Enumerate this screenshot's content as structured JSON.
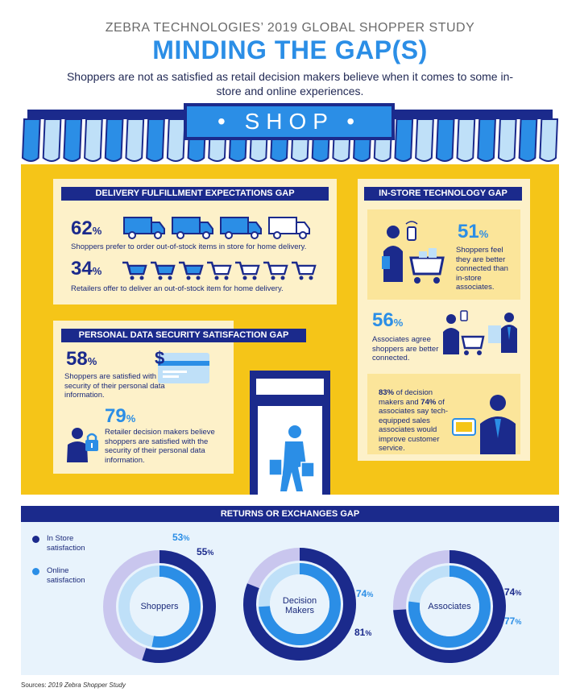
{
  "header": {
    "supertitle": "ZEBRA TECHNOLOGIES’ 2019 GLOBAL SHOPPER STUDY",
    "title": "MINDING THE GAP(S)",
    "subtitle": "Shoppers are not as satisfied as retail decision makers believe when it comes to some in-store and online experiences."
  },
  "shop_sign": "• SHOP •",
  "delivery": {
    "label": "DELIVERY FULFILLMENT EXPECTATIONS GAP",
    "stat1_value": "62",
    "stat1_unit": "%",
    "stat1_text": "Shoppers prefer to order out-of-stock items in store for home delivery.",
    "stat2_value": "34",
    "stat2_unit": "%",
    "stat2_text": "Retailers offer to deliver an out-of-stock item for home delivery.",
    "trucks_filled": 3,
    "trucks_total": 4,
    "carts_filled": 3,
    "carts_total": 7
  },
  "security": {
    "label": "PERSONAL DATA SECURITY SATISFACTION GAP",
    "stat1_value": "58",
    "stat1_unit": "%",
    "stat1_text": "Shoppers are satisfied with the security of their personal data information.",
    "stat2_value": "79",
    "stat2_unit": "%",
    "stat2_text": "Retailer decision makers believe shoppers are satisfied with the security of their personal data information."
  },
  "instore": {
    "label": "IN-STORE TECHNOLOGY GAP",
    "stat1_value": "51",
    "stat1_unit": "%",
    "stat1_text": "Shoppers feel they are better connected than in-store associates.",
    "stat2_value": "56",
    "stat2_unit": "%",
    "stat2_text": "Associates agree shoppers are better connected.",
    "stat3_a": "83%",
    "stat3_b": " of decision makers and ",
    "stat3_c": "74%",
    "stat3_d": " of associates say tech-equipped sales associates would improve customer service."
  },
  "returns": {
    "label": "RETURNS OR EXCHANGES GAP",
    "legend": [
      {
        "label": "In Store satisfaction",
        "color": "#1b2a8c"
      },
      {
        "label": "Online satisfaction",
        "color": "#2b8ee6"
      }
    ],
    "groups": [
      {
        "name": "Shoppers",
        "in_store": 55,
        "online": 53,
        "in_store_label": "55",
        "online_label": "53"
      },
      {
        "name": "Decision Makers",
        "in_store": 81,
        "online": 74,
        "in_store_label": "81",
        "online_label": "74"
      },
      {
        "name": "Associates",
        "in_store": 74,
        "online": 77,
        "in_store_label": "74",
        "online_label": "77"
      }
    ],
    "pct_sign": "%"
  },
  "colors": {
    "navy": "#1b2a8c",
    "blue": "#2b8ee6",
    "yellow": "#f5c518",
    "cream": "#fdf1c9",
    "lavender": "#c9c6ee",
    "light_blue": "#bfe0f8"
  },
  "sources": {
    "prefix": "Sources: ",
    "text": "2019 Zebra Shopper Study"
  }
}
